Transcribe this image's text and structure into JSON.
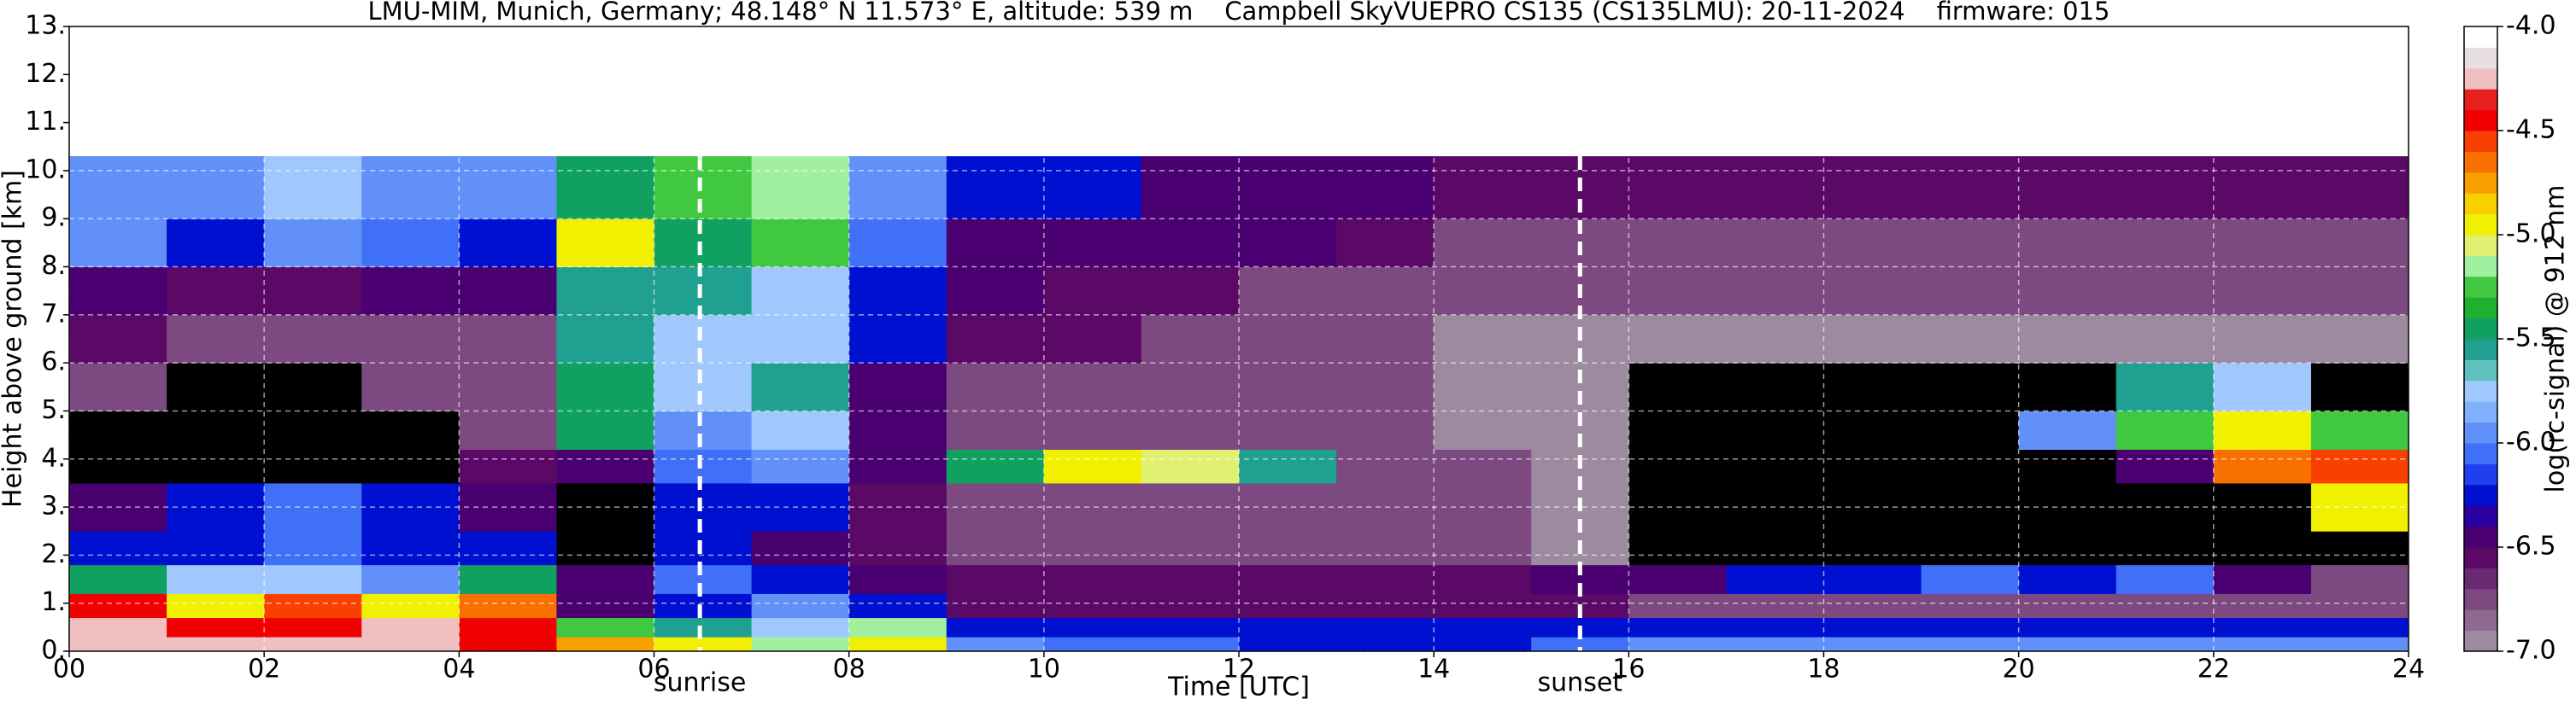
{
  "chart_data": {
    "type": "heatmap",
    "title": "LMU-MIM, Munich, Germany; 48.148° N 11.573° E, altitude: 539 m    Campbell SkyVUEPRO CS135 (CS135LMU): 20-11-2024    firmware: 015",
    "x_label": "Time [UTC]",
    "y_label": "Height above ground [km]",
    "colorbar_label": "log(rc-signal) @ 912 nm",
    "xlim": [
      0,
      24
    ],
    "xticks": [
      {
        "value": 0,
        "label": "00"
      },
      {
        "value": 2,
        "label": "02"
      },
      {
        "value": 4,
        "label": "04"
      },
      {
        "value": 6,
        "label": "06"
      },
      {
        "value": 8,
        "label": "08"
      },
      10,
      12,
      14,
      16,
      18,
      20,
      22,
      24
    ],
    "ylim": [
      0,
      13
    ],
    "yticks": [
      {
        "value": 0,
        "label": "0."
      },
      {
        "value": 1,
        "label": "1."
      },
      {
        "value": 2,
        "label": "2."
      },
      {
        "value": 3,
        "label": "3."
      },
      {
        "value": 4,
        "label": "4."
      },
      {
        "value": 5,
        "label": "5."
      },
      {
        "value": 6,
        "label": "6."
      },
      {
        "value": 7,
        "label": "7."
      },
      {
        "value": 8,
        "label": "8."
      },
      {
        "value": 9,
        "label": "9."
      },
      {
        "value": 10,
        "label": "10."
      },
      {
        "value": 11,
        "label": "11."
      },
      {
        "value": 12,
        "label": "12."
      },
      {
        "value": 13,
        "label": "13."
      }
    ],
    "zlim": [
      -7,
      -4
    ],
    "zticks": [
      {
        "value": -4,
        "label": "-4.0"
      },
      {
        "value": -4.5,
        "label": "-4.5"
      },
      {
        "value": -5,
        "label": "-5.0"
      },
      {
        "value": -5.5,
        "label": "-5.5"
      },
      {
        "value": -6,
        "label": "-6.0"
      },
      {
        "value": -6.5,
        "label": "-6.5"
      },
      {
        "value": -7,
        "label": "-7.0"
      }
    ],
    "colormap": [
      "#9e8aa0",
      "#8e6a90",
      "#7c4a80",
      "#6a2a72",
      "#5a0a66",
      "#4a0070",
      "#2a00a0",
      "#0010d0",
      "#2040f0",
      "#4070f8",
      "#6090f8",
      "#80b0fc",
      "#a0c8fc",
      "#60c0c0",
      "#20a090",
      "#10a060",
      "#20b030",
      "#40c840",
      "#a0f0a0",
      "#e0f070",
      "#f0f000",
      "#f8d000",
      "#f8a000",
      "#f87000",
      "#f84000",
      "#f00000",
      "#e82020",
      "#f0c0c0",
      "#e8e0e0",
      "#ffffff"
    ],
    "missing_color": "#000000",
    "grid": true,
    "x_bins": [
      0,
      1,
      2,
      3,
      4,
      5,
      6,
      7,
      8,
      9,
      10,
      11,
      12,
      13,
      14,
      15,
      16,
      17,
      18,
      19,
      20,
      21,
      22,
      23,
      24
    ],
    "y_bins": [
      0,
      0.3,
      0.7,
      1.2,
      1.8,
      2.5,
      3.5,
      4.2,
      5,
      6,
      7,
      8,
      9,
      10.3
    ],
    "z": [
      [
        -4.2,
        -4.2,
        -4.3,
        -4.3,
        -4.4,
        -4.8,
        -5.0,
        -5.2,
        -5.0,
        -6.0,
        -6.1,
        -6.1,
        -6.2,
        -6.2,
        -6.2,
        -6.1,
        -5.9,
        -5.9,
        -5.9,
        -5.9,
        -5.9,
        -5.9,
        -5.9,
        -5.9
      ],
      [
        -4.3,
        -4.4,
        -4.4,
        -4.3,
        -4.5,
        -5.3,
        -5.6,
        -5.8,
        -5.2,
        -6.3,
        -6.2,
        -6.2,
        -6.3,
        -6.3,
        -6.3,
        -6.2,
        -6.2,
        -6.2,
        -6.2,
        -6.2,
        -6.2,
        -6.2,
        -6.2,
        -6.2
      ],
      [
        -4.5,
        -5.0,
        -4.6,
        -5.0,
        -4.7,
        -6.4,
        -6.2,
        -6.0,
        -6.3,
        -6.6,
        -6.6,
        -6.6,
        -6.6,
        -6.6,
        -6.6,
        -6.6,
        -6.7,
        -6.7,
        -6.7,
        -6.7,
        -6.7,
        -6.8,
        -6.8,
        -6.8
      ],
      [
        -5.5,
        -5.7,
        -5.8,
        -6.0,
        -5.4,
        -6.5,
        -6.1,
        -6.2,
        -6.4,
        -6.6,
        -6.6,
        -6.6,
        -6.6,
        -6.6,
        -6.6,
        -6.5,
        -6.5,
        -6.3,
        -6.2,
        -6.1,
        -6.2,
        -6.1,
        -6.4,
        -6.8
      ],
      [
        -6.3,
        -6.2,
        -6.1,
        -6.2,
        -6.3,
        null,
        -6.2,
        -6.5,
        -6.6,
        -6.7,
        -6.7,
        -6.7,
        -6.7,
        -6.8,
        -6.8,
        -6.9,
        null,
        null,
        null,
        null,
        null,
        null,
        null,
        null
      ],
      [
        -6.4,
        -6.3,
        -6.1,
        -6.3,
        -6.4,
        null,
        -6.3,
        -6.3,
        -6.6,
        -6.7,
        -6.7,
        -6.7,
        -6.7,
        -6.8,
        -6.8,
        -6.9,
        null,
        null,
        null,
        null,
        null,
        null,
        null,
        -5.0
      ],
      [
        null,
        null,
        null,
        null,
        -6.6,
        -6.5,
        -6.1,
        -6.0,
        -6.5,
        -5.5,
        -4.9,
        -5.1,
        -5.6,
        -6.7,
        -6.8,
        -6.9,
        null,
        null,
        null,
        null,
        null,
        -6.5,
        -4.7,
        -4.6
      ],
      [
        null,
        null,
        null,
        null,
        -6.7,
        -5.4,
        -6.0,
        -5.8,
        -6.5,
        -6.7,
        -6.7,
        -6.7,
        -6.8,
        -6.8,
        -6.9,
        -6.9,
        null,
        null,
        null,
        null,
        -5.9,
        -5.3,
        -4.9,
        -5.3
      ],
      [
        -6.8,
        null,
        null,
        -6.8,
        -6.7,
        -5.5,
        -5.8,
        -5.6,
        -6.4,
        -6.7,
        -6.7,
        -6.7,
        -6.8,
        -6.8,
        -6.9,
        -6.9,
        null,
        null,
        null,
        null,
        null,
        -5.6,
        -5.8,
        null
      ],
      [
        -6.6,
        -6.8,
        -6.8,
        -6.7,
        -6.7,
        -5.6,
        -5.7,
        -5.8,
        -6.3,
        -6.6,
        -6.6,
        -6.7,
        -6.7,
        -6.8,
        -6.9,
        -6.9,
        -6.9,
        -6.9,
        -6.9,
        -6.9,
        -6.9,
        -6.9,
        -6.9,
        -6.9
      ],
      [
        -6.4,
        -6.6,
        -6.6,
        -6.5,
        -6.5,
        -5.6,
        -5.6,
        -5.7,
        -6.2,
        -6.5,
        -6.6,
        -6.6,
        -6.7,
        -6.7,
        -6.8,
        -6.8,
        -6.8,
        -6.8,
        -6.8,
        -6.8,
        -6.8,
        -6.8,
        -6.8,
        -6.8
      ],
      [
        -6.0,
        -6.2,
        -6.0,
        -6.1,
        -6.2,
        -5.0,
        -5.5,
        -5.3,
        -6.1,
        -6.4,
        -6.4,
        -6.5,
        -6.5,
        -6.6,
        -6.7,
        -6.7,
        -6.7,
        -6.7,
        -6.7,
        -6.7,
        -6.7,
        -6.7,
        -6.7,
        -6.7
      ],
      [
        -5.9,
        -6.0,
        -5.8,
        -6.0,
        -6.0,
        -5.4,
        -5.3,
        -5.2,
        -6.0,
        -6.3,
        -6.3,
        -6.4,
        -6.4,
        -6.5,
        -6.6,
        -6.6,
        -6.6,
        -6.6,
        -6.6,
        -6.6,
        -6.6,
        -6.6,
        -6.6,
        -6.6
      ]
    ],
    "annotations": [
      {
        "text": "sunrise",
        "x": 6.47
      },
      {
        "text": "sunset",
        "x": 15.5
      }
    ]
  }
}
